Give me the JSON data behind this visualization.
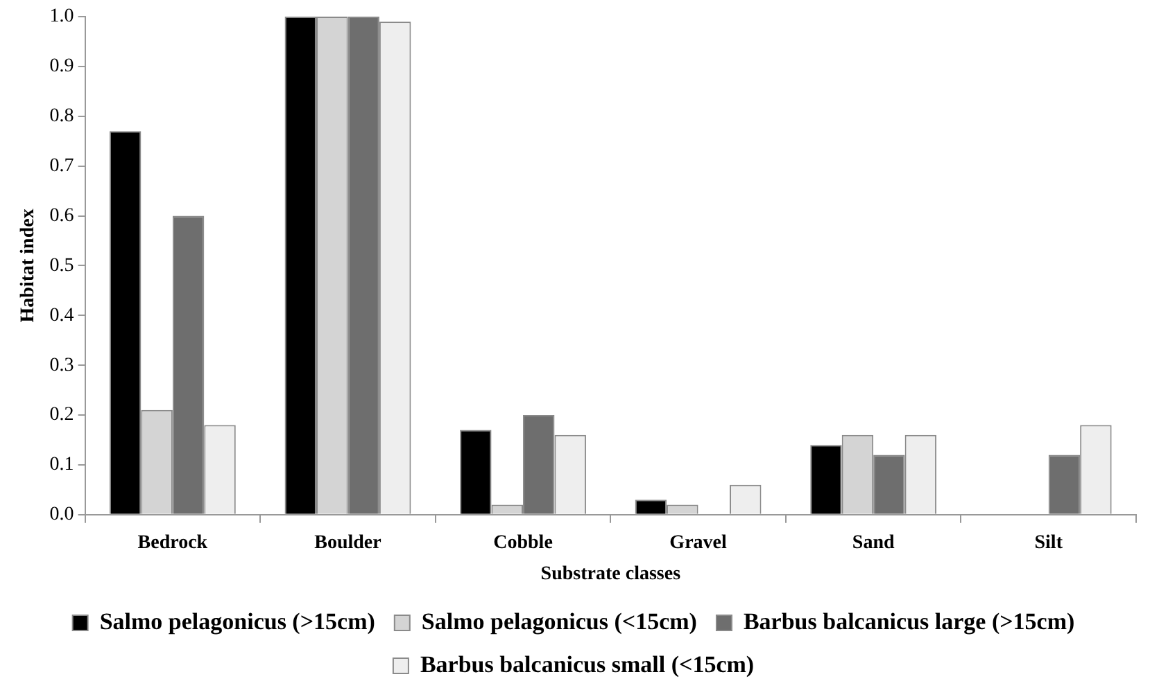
{
  "chart_data": {
    "type": "bar",
    "xlabel": "Substrate classes",
    "ylabel": "Habitat index",
    "categories": [
      "Bedrock",
      "Boulder",
      "Cobble",
      "Gravel",
      "Sand",
      "Silt"
    ],
    "series": [
      {
        "name": "Salmo pelagonicus (>15cm)",
        "color": "#000000",
        "values": [
          0.77,
          1.0,
          0.17,
          0.03,
          0.14,
          0
        ]
      },
      {
        "name": "Salmo pelagonicus (<15cm)",
        "color": "#d4d4d4",
        "values": [
          0.21,
          1.0,
          0.02,
          0.02,
          0.16,
          0
        ]
      },
      {
        "name": "Barbus balcanicus large (>15cm)",
        "color": "#6e6e6e",
        "values": [
          0.6,
          1.0,
          0.2,
          0,
          0.12,
          0.12
        ]
      },
      {
        "name": "Barbus balcanicus small (<15cm)",
        "color": "#eeeeee",
        "values": [
          0.18,
          0.99,
          0.16,
          0.06,
          0.16,
          0.18
        ]
      }
    ],
    "ylim": [
      0,
      1
    ],
    "yticks": [
      {
        "value": 0,
        "label": "0.0"
      },
      {
        "value": 0.1,
        "label": "0.1"
      },
      {
        "value": 0.2,
        "label": "0.2"
      },
      {
        "value": 0.3,
        "label": "0.3"
      },
      {
        "value": 0.4,
        "label": "0.4"
      },
      {
        "value": 0.5,
        "label": "0.5"
      },
      {
        "value": 0.6,
        "label": "0.6"
      },
      {
        "value": 0.7,
        "label": "0.7"
      },
      {
        "value": 0.8,
        "label": "0.8"
      },
      {
        "value": 0.9,
        "label": "0.9"
      },
      {
        "value": 1,
        "label": "1.0"
      }
    ],
    "grid": false,
    "legend": "bottom"
  }
}
